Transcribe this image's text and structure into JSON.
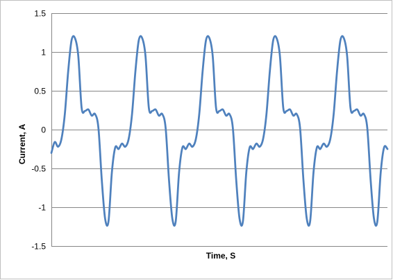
{
  "chart_data": {
    "type": "line",
    "title": "",
    "xlabel": "Time, S",
    "ylabel": "Current, A",
    "ylim": [
      -1.5,
      1.5
    ],
    "y_ticks": [
      1.5,
      1,
      0.5,
      0,
      -0.5,
      -1,
      -1.5
    ],
    "y_tick_labels": [
      "1.5",
      "1",
      "0.5",
      "0",
      "-0.5",
      "-1",
      "-1.5"
    ],
    "x_ticks_shown": false,
    "grid": "horizontal",
    "legend": "none",
    "line_color": "#4f81bd",
    "gridline_color": "#868686",
    "xlim": [
      0,
      5
    ],
    "series": [
      {
        "x": [
          0,
          0.05,
          0.1,
          0.15,
          0.2,
          0.25,
          0.3,
          0.35,
          0.4,
          0.45,
          0.5,
          0.55,
          0.6,
          0.65,
          0.7,
          0.75,
          0.8,
          0.85,
          0.9,
          0.95,
          1.0,
          1.05,
          1.1,
          1.15,
          1.2,
          1.25,
          1.3,
          1.35,
          1.4,
          1.45,
          1.5,
          1.55,
          1.6,
          1.65,
          1.7,
          1.75,
          1.8,
          1.85,
          1.9,
          1.95,
          2.0,
          2.05,
          2.1,
          2.15,
          2.2,
          2.25,
          2.3,
          2.35,
          2.4,
          2.45,
          2.5,
          2.55,
          2.6,
          2.65,
          2.7,
          2.75,
          2.8,
          2.85,
          2.9,
          2.95,
          3.0,
          3.05,
          3.1,
          3.15,
          3.2,
          3.25,
          3.3,
          3.35,
          3.4,
          3.45,
          3.5,
          3.55,
          3.6,
          3.65,
          3.7,
          3.75,
          3.8,
          3.85,
          3.9,
          3.95,
          4.0,
          4.05,
          4.1,
          4.15,
          4.2,
          4.25,
          4.3,
          4.35,
          4.4,
          4.45,
          4.5,
          4.55,
          4.6,
          4.65,
          4.7,
          4.75,
          4.8,
          4.85,
          4.9,
          4.95,
          5.0
        ],
        "values": [
          -0.3,
          -0.16,
          -0.22,
          -0.12,
          0.2,
          0.75,
          1.15,
          1.18,
          0.95,
          0.28,
          0.24,
          0.26,
          0.18,
          0.2,
          0.02,
          -0.65,
          -1.15,
          -1.18,
          -0.55,
          -0.23,
          -0.25,
          -0.18,
          -0.22,
          -0.12,
          0.2,
          0.75,
          1.15,
          1.18,
          0.95,
          0.28,
          0.24,
          0.26,
          0.18,
          0.2,
          0.02,
          -0.65,
          -1.15,
          -1.18,
          -0.55,
          -0.23,
          -0.25,
          -0.18,
          -0.22,
          -0.12,
          0.2,
          0.75,
          1.15,
          1.18,
          0.95,
          0.28,
          0.24,
          0.26,
          0.18,
          0.2,
          0.02,
          -0.65,
          -1.15,
          -1.18,
          -0.55,
          -0.23,
          -0.25,
          -0.18,
          -0.22,
          -0.12,
          0.2,
          0.75,
          1.15,
          1.18,
          0.95,
          0.28,
          0.24,
          0.26,
          0.18,
          0.2,
          0.02,
          -0.65,
          -1.15,
          -1.18,
          -0.55,
          -0.23,
          -0.25,
          -0.18,
          -0.22,
          -0.12,
          0.2,
          0.75,
          1.15,
          1.18,
          0.95,
          0.28,
          0.24,
          0.26,
          0.18,
          0.2,
          0.02,
          -0.65,
          -1.15,
          -1.18,
          -0.55,
          -0.23,
          -0.25
        ]
      }
    ]
  }
}
